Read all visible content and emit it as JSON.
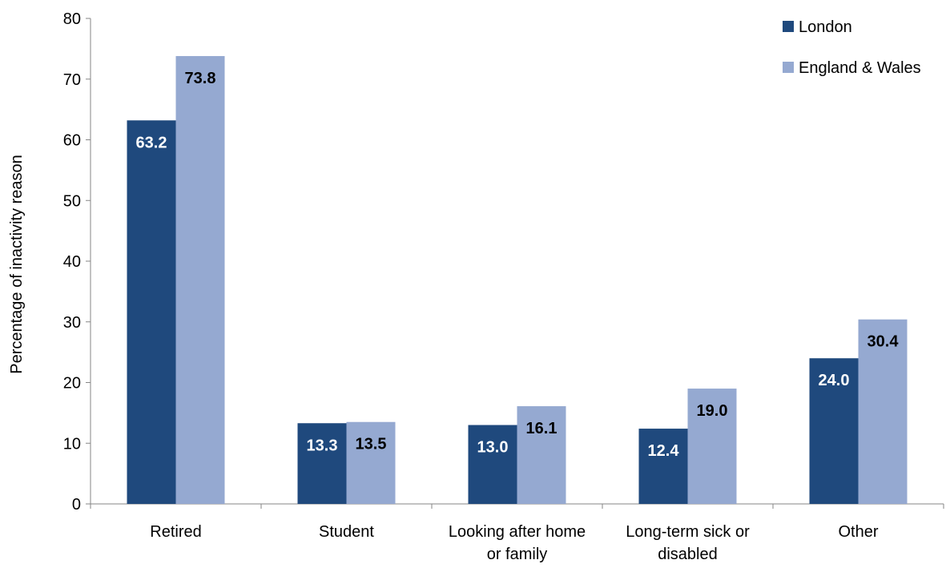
{
  "chart_data": {
    "type": "bar",
    "title": "",
    "xlabel": "",
    "ylabel": "Percentage of inactivity reason",
    "ylim": [
      0,
      80
    ],
    "yticks": [
      0,
      10,
      20,
      30,
      40,
      50,
      60,
      70,
      80
    ],
    "grid": false,
    "legend_position": "top-right",
    "categories": [
      [
        "Retired"
      ],
      [
        "Student"
      ],
      [
        "Looking after home",
        "or family"
      ],
      [
        "Long-term sick or",
        "disabled"
      ],
      [
        "Other"
      ]
    ],
    "series": [
      {
        "name": "London",
        "color": "#1f497d",
        "label_color": "#ffffff",
        "values": [
          63.2,
          13.3,
          13.0,
          12.4,
          24.0
        ],
        "labels": [
          "63.2",
          "13.3",
          "13.0",
          "12.4",
          "24.0"
        ]
      },
      {
        "name": "England & Wales",
        "color": "#95a9d1",
        "label_color": "#000000",
        "values": [
          73.8,
          13.5,
          16.1,
          19.0,
          30.4
        ],
        "labels": [
          "73.8",
          "13.5",
          "16.1",
          "19.0",
          "30.4"
        ]
      }
    ]
  }
}
